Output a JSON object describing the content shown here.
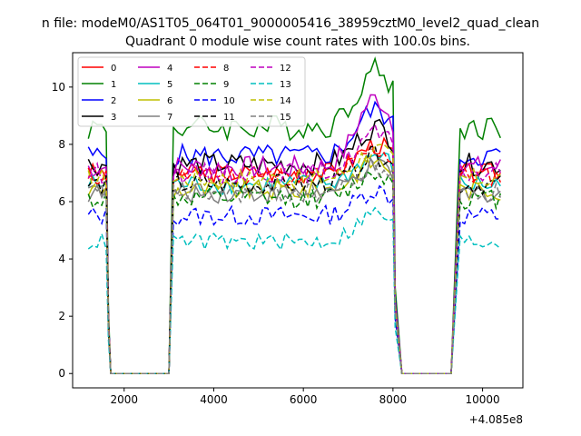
{
  "suptitle": "n file: modeM0/AS1T05_064T01_9000005416_38959cztM0_level2_quad_clean",
  "chart_data": {
    "type": "line",
    "title": "Quadrant 0 module wise count rates with 100.0s bins.",
    "xlabel": "",
    "ylabel": "",
    "x_offset_label": "+4.085e8",
    "xlim": [
      850,
      10900
    ],
    "ylim": [
      -0.5,
      11.2
    ],
    "xticks": [
      2000,
      4000,
      6000,
      8000,
      10000
    ],
    "yticks": [
      0,
      2,
      4,
      6,
      8,
      10
    ],
    "grid": false,
    "legend": {
      "placement": "top-left",
      "columns": 4
    },
    "segments": [
      {
        "x_start": 1200,
        "x_end": 1600
      },
      {
        "x_start": 3100,
        "x_end": 8000
      },
      {
        "x_start": 9500,
        "x_end": 10400
      }
    ],
    "gaps": [
      {
        "x_from": 1600,
        "zero_start": 1700,
        "zero_end": 3000,
        "x_to": 3100
      },
      {
        "x_from": 8000,
        "zero_start": 8200,
        "zero_end": 9300,
        "x_to": 9500
      }
    ],
    "series": [
      {
        "name": "0",
        "color": "#ff0000",
        "dash": "solid",
        "level": 7.0,
        "peak": 8.0,
        "noise": 0.35
      },
      {
        "name": "1",
        "color": "#008000",
        "dash": "solid",
        "level": 8.6,
        "peak": 10.6,
        "noise": 0.45
      },
      {
        "name": "2",
        "color": "#0000ff",
        "dash": "solid",
        "level": 7.6,
        "peak": 9.2,
        "noise": 0.4
      },
      {
        "name": "3",
        "color": "#000000",
        "dash": "solid",
        "level": 7.3,
        "peak": 8.6,
        "noise": 0.4
      },
      {
        "name": "4",
        "color": "#bf00bf",
        "dash": "solid",
        "level": 7.2,
        "peak": 9.6,
        "noise": 0.4
      },
      {
        "name": "5",
        "color": "#00bfbf",
        "dash": "solid",
        "level": 6.6,
        "peak": 7.6,
        "noise": 0.35
      },
      {
        "name": "6",
        "color": "#bfbf00",
        "dash": "solid",
        "level": 6.4,
        "peak": 7.4,
        "noise": 0.35
      },
      {
        "name": "7",
        "color": "#808080",
        "dash": "solid",
        "level": 6.3,
        "peak": 7.2,
        "noise": 0.35
      },
      {
        "name": "8",
        "color": "#ff0000",
        "dash": "dashed",
        "level": 6.9,
        "peak": 7.8,
        "noise": 0.35
      },
      {
        "name": "9",
        "color": "#008000",
        "dash": "dashed",
        "level": 6.1,
        "peak": 7.0,
        "noise": 0.35
      },
      {
        "name": "10",
        "color": "#0000ff",
        "dash": "dashed",
        "level": 5.5,
        "peak": 6.4,
        "noise": 0.35
      },
      {
        "name": "11",
        "color": "#000000",
        "dash": "dashed",
        "level": 6.6,
        "peak": 7.6,
        "noise": 0.35
      },
      {
        "name": "12",
        "color": "#bf00bf",
        "dash": "dashed",
        "level": 7.0,
        "peak": 8.4,
        "noise": 0.35
      },
      {
        "name": "13",
        "color": "#00bfbf",
        "dash": "dashed",
        "level": 4.6,
        "peak": 5.6,
        "noise": 0.3
      },
      {
        "name": "14",
        "color": "#bfbf00",
        "dash": "dashed",
        "level": 6.8,
        "peak": 7.8,
        "noise": 0.35
      },
      {
        "name": "15",
        "color": "#808080",
        "dash": "dashed",
        "level": 6.3,
        "peak": 7.2,
        "noise": 0.35
      }
    ]
  }
}
